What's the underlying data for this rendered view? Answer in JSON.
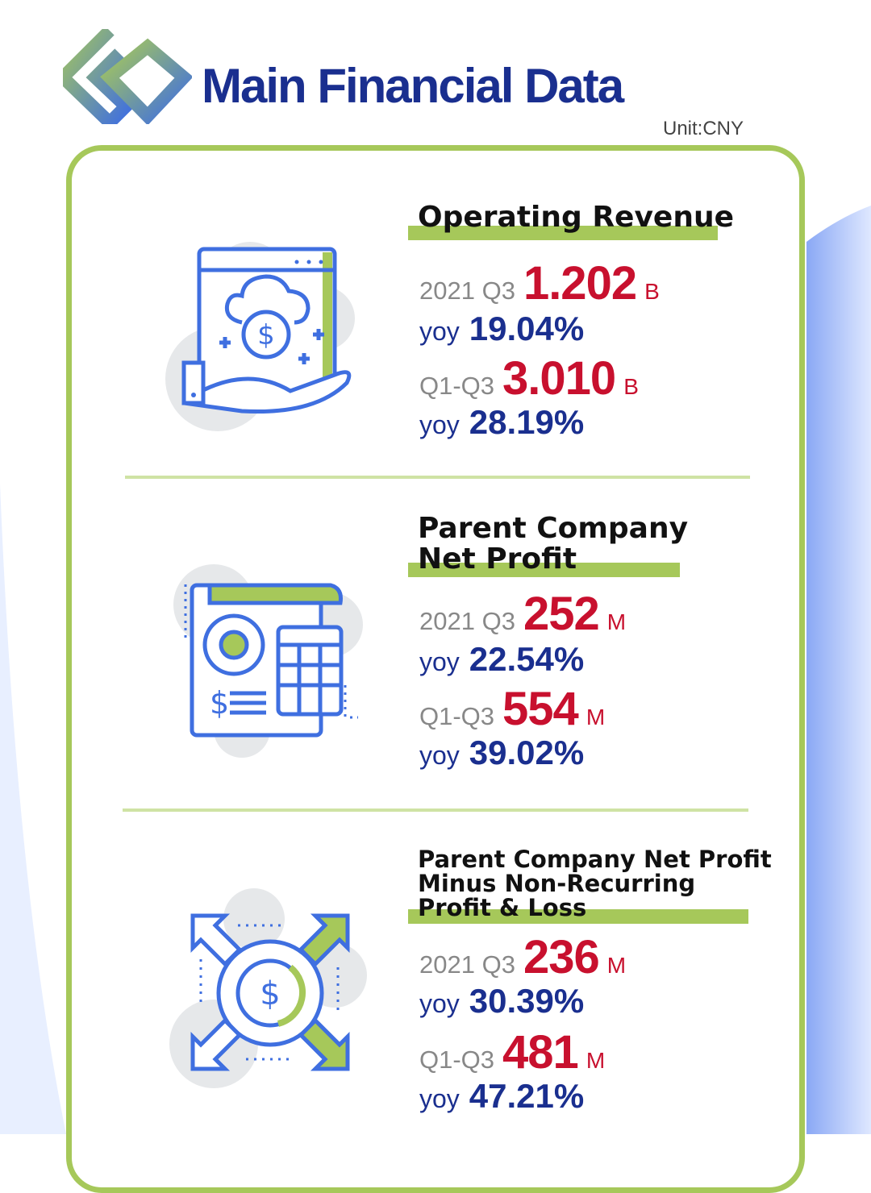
{
  "header": {
    "title": "Main Financial Data",
    "unit": "Unit:CNY"
  },
  "colors": {
    "navy": "#1a2f8f",
    "red": "#c8102e",
    "green": "#a6c85a",
    "icon_blue": "#3f6fe0"
  },
  "sections": [
    {
      "icon": "cloud-money-hand-icon",
      "title_lines": [
        "Operating Revenue"
      ],
      "q3": {
        "label": "2021 Q3",
        "value": "1.202",
        "unit": "B"
      },
      "q3_yoy": {
        "label": "yoy",
        "value": "19.04%"
      },
      "ytd": {
        "label": "Q1-Q3",
        "value": "3.010",
        "unit": "B"
      },
      "ytd_yoy": {
        "label": "yoy",
        "value": "28.19%"
      }
    },
    {
      "icon": "report-calculator-icon",
      "title_lines": [
        "Parent Company",
        "Net Profit"
      ],
      "q3": {
        "label": "2021 Q3",
        "value": "252",
        "unit": "M"
      },
      "q3_yoy": {
        "label": "yoy",
        "value": "22.54%"
      },
      "ytd": {
        "label": "Q1-Q3",
        "value": "554",
        "unit": "M"
      },
      "ytd_yoy": {
        "label": "yoy",
        "value": "39.02%"
      }
    },
    {
      "icon": "coin-arrows-icon",
      "title_lines": [
        "Parent Company Net Profit",
        "Minus Non-Recurring",
        "Profit & Loss"
      ],
      "q3": {
        "label": "2021 Q3",
        "value": "236",
        "unit": "M"
      },
      "q3_yoy": {
        "label": "yoy",
        "value": "30.39%"
      },
      "ytd": {
        "label": "Q1-Q3",
        "value": "481",
        "unit": "M"
      },
      "ytd_yoy": {
        "label": "yoy",
        "value": "47.21%"
      }
    }
  ]
}
